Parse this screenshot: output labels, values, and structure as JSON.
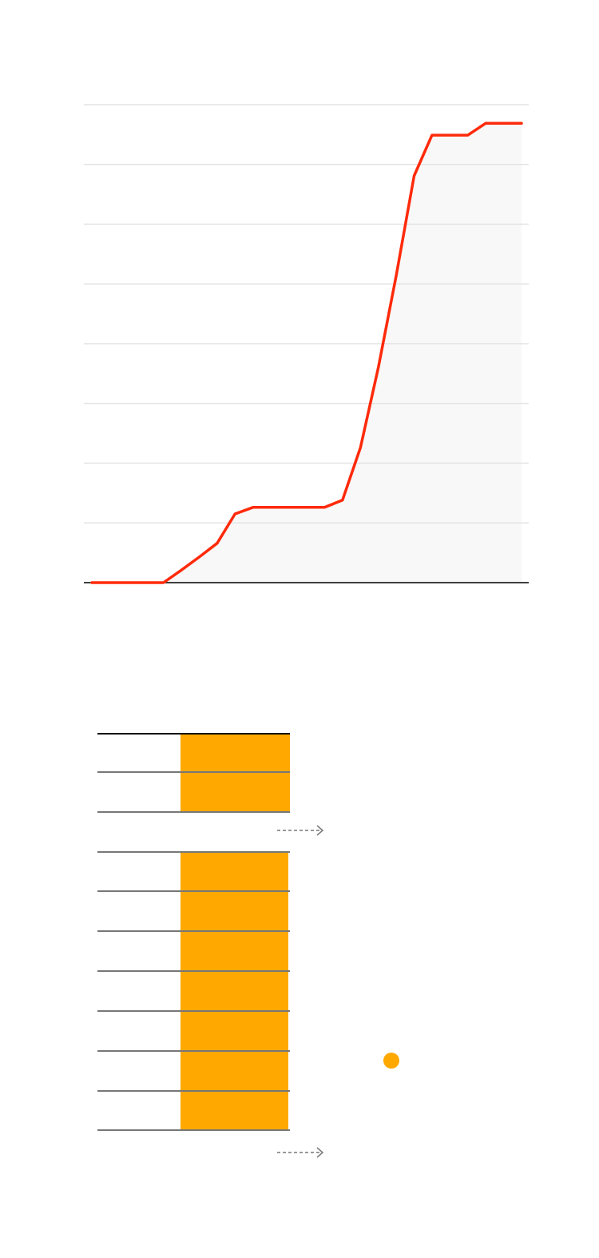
{
  "chart_data": {
    "type": "line",
    "values": [
      0,
      0,
      0,
      0,
      0,
      0.21,
      0.43,
      0.66,
      1.15,
      1.26,
      1.26,
      1.26,
      1.26,
      1.26,
      1.38,
      2.26,
      3.6,
      5.14,
      6.81,
      7.49,
      7.49,
      7.49,
      7.69,
      7.69,
      7.69
    ],
    "color": "#ff2a0a",
    "area_color": "#f8f8f8",
    "ylim": [
      0,
      8
    ],
    "yticks": [
      1,
      2,
      3,
      4,
      5,
      6,
      7,
      8
    ],
    "grid": true
  }
}
